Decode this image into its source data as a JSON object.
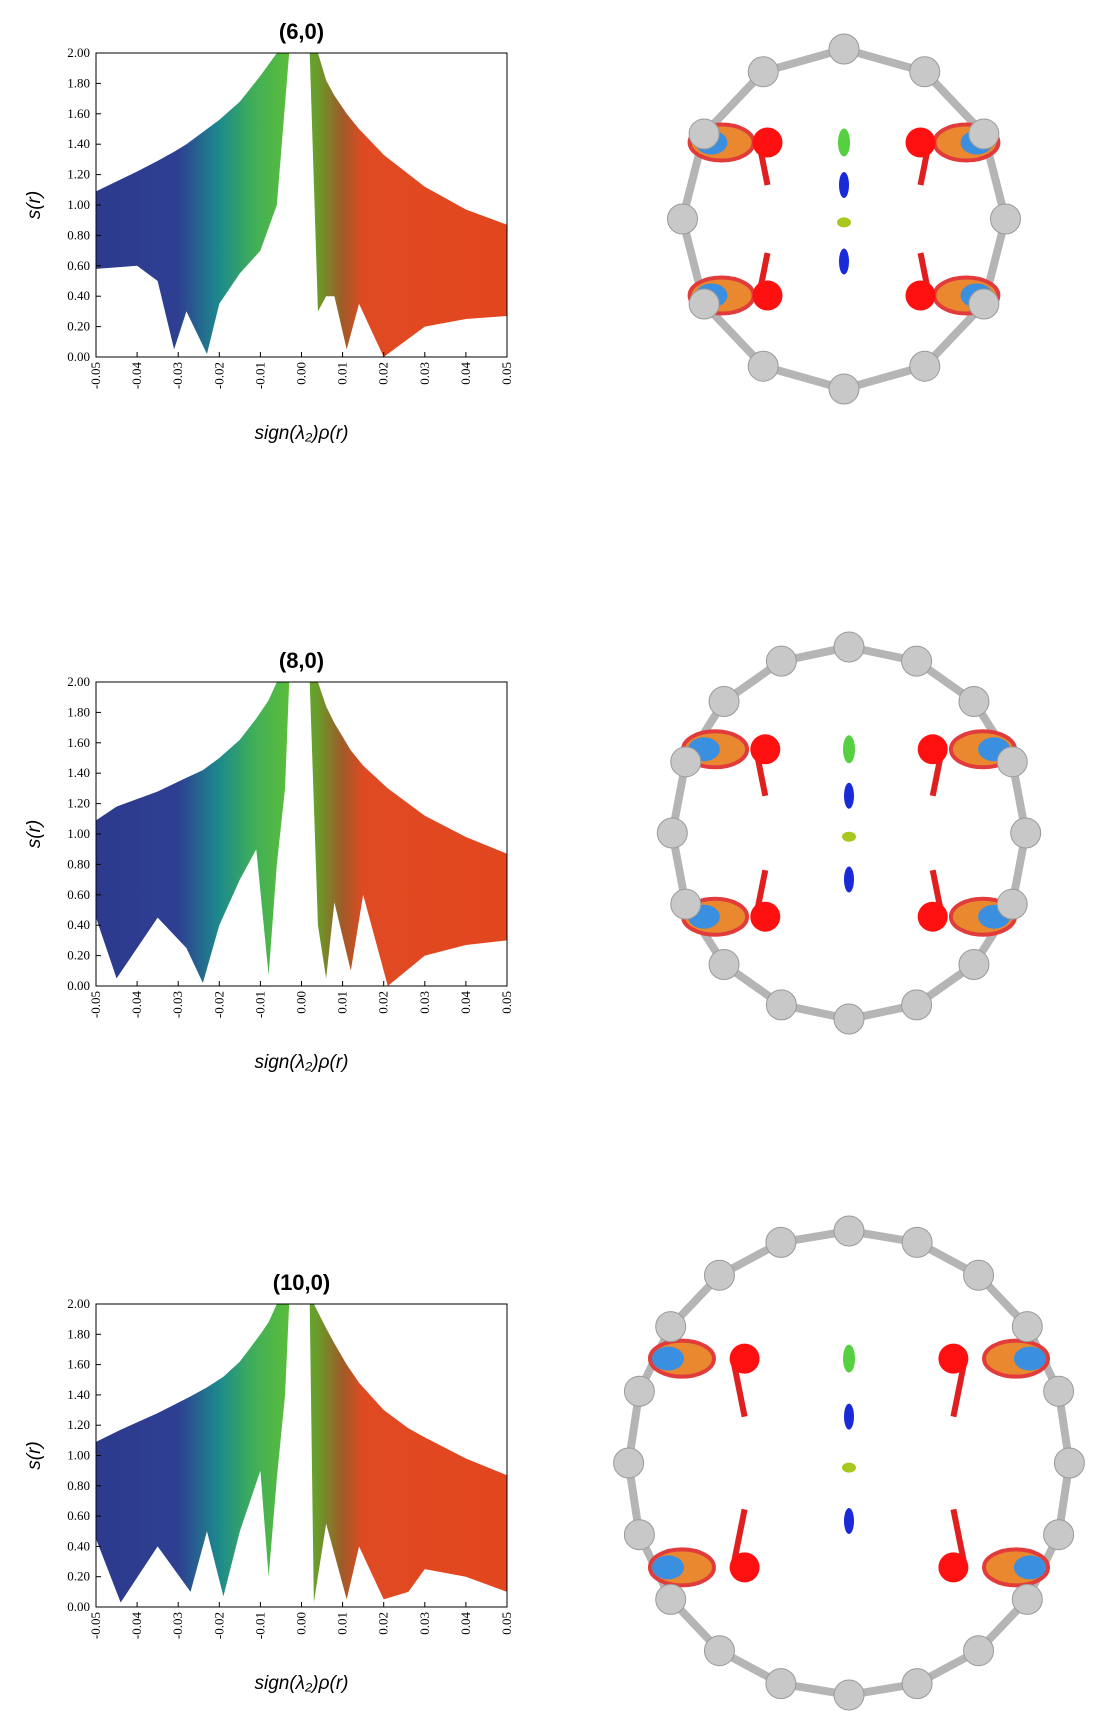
{
  "chart_data": [
    {
      "type": "range_area",
      "title": "(6,0)",
      "x_label": "sign(λ₂)ρ(r)",
      "y_label": "s(r)",
      "x": [
        -0.05,
        -0.04,
        -0.035,
        -0.031,
        -0.028,
        -0.023,
        -0.02,
        -0.015,
        -0.01,
        -0.006,
        -0.003,
        0,
        0.002,
        0.004,
        0.006,
        0.008,
        0.011,
        0.014,
        0.02,
        0.03,
        0.04,
        0.05
      ],
      "high": [
        1.09,
        1.22,
        1.29,
        1.35,
        1.4,
        1.5,
        1.56,
        1.68,
        1.85,
        2.0,
        2.0,
        null,
        2.0,
        2.0,
        1.82,
        1.72,
        1.6,
        1.5,
        1.33,
        1.12,
        0.97,
        0.87
      ],
      "low": [
        0.58,
        0.6,
        0.5,
        0.05,
        0.3,
        0.02,
        0.35,
        0.55,
        0.7,
        1.0,
        2.0,
        null,
        2.0,
        0.3,
        0.4,
        0.4,
        0.05,
        0.35,
        0.0,
        0.2,
        0.25,
        0.27
      ],
      "xlim": [
        -0.05,
        0.05
      ],
      "ylim": [
        0,
        2
      ],
      "xticks": [
        -0.05,
        -0.04,
        -0.03,
        -0.02,
        -0.01,
        {
          "value": 0,
          "label": "0.00"
        },
        0.01,
        0.02,
        0.03,
        0.04,
        0.05
      ],
      "yticks": [
        {
          "value": 0,
          "label": "0.00"
        },
        {
          "value": 0.2,
          "label": "0.20"
        },
        {
          "value": 0.4,
          "label": "0.40"
        },
        {
          "value": 0.6,
          "label": "0.60"
        },
        {
          "value": 0.8,
          "label": "0.80"
        },
        {
          "value": 1,
          "label": "1.00"
        },
        {
          "value": 1.2,
          "label": "1.20"
        },
        {
          "value": 1.4,
          "label": "1.40"
        },
        {
          "value": 1.6,
          "label": "1.60"
        },
        {
          "value": 1.8,
          "label": "1.80"
        },
        {
          "value": 2,
          "label": "2.00"
        }
      ]
    },
    {
      "type": "range_area",
      "title": "(8,0)",
      "x_label": "sign(λ₂)ρ(r)",
      "y_label": "s(r)",
      "x": [
        -0.05,
        -0.045,
        -0.035,
        -0.028,
        -0.024,
        -0.02,
        -0.015,
        -0.011,
        -0.008,
        -0.006,
        -0.004,
        -0.003,
        0,
        0.002,
        0.004,
        0.006,
        0.008,
        0.012,
        0.015,
        0.021,
        0.03,
        0.04,
        0.05
      ],
      "high": [
        1.09,
        1.18,
        1.28,
        1.37,
        1.42,
        1.5,
        1.62,
        1.76,
        1.88,
        2.0,
        2.0,
        2.0,
        null,
        2.0,
        2.0,
        1.84,
        1.73,
        1.55,
        1.45,
        1.3,
        1.12,
        0.98,
        0.87
      ],
      "low": [
        0.45,
        0.05,
        0.45,
        0.25,
        0.02,
        0.4,
        0.7,
        0.9,
        0.07,
        0.8,
        1.3,
        2.0,
        null,
        2.0,
        0.4,
        0.05,
        0.55,
        0.1,
        0.6,
        0.0,
        0.2,
        0.27,
        0.3
      ],
      "xlim": [
        -0.05,
        0.05
      ],
      "ylim": [
        0,
        2
      ],
      "xticks": [
        -0.05,
        -0.04,
        -0.03,
        -0.02,
        -0.01,
        {
          "value": 0,
          "label": "0.00"
        },
        0.01,
        0.02,
        0.03,
        0.04,
        0.05
      ],
      "yticks": [
        {
          "value": 0,
          "label": "0.00"
        },
        {
          "value": 0.2,
          "label": "0.20"
        },
        {
          "value": 0.4,
          "label": "0.40"
        },
        {
          "value": 0.6,
          "label": "0.60"
        },
        {
          "value": 0.8,
          "label": "0.80"
        },
        {
          "value": 1,
          "label": "1.00"
        },
        {
          "value": 1.2,
          "label": "1.20"
        },
        {
          "value": 1.4,
          "label": "1.40"
        },
        {
          "value": 1.6,
          "label": "1.60"
        },
        {
          "value": 1.8,
          "label": "1.80"
        },
        {
          "value": 2,
          "label": "2.00"
        }
      ]
    },
    {
      "type": "range_area",
      "title": "(10,0)",
      "x_label": "sign(λ₂)ρ(r)",
      "y_label": "s(r)",
      "x": [
        -0.05,
        -0.044,
        -0.035,
        -0.027,
        -0.023,
        -0.019,
        -0.015,
        -0.01,
        -0.008,
        -0.006,
        -0.004,
        -0.003,
        0,
        0.002,
        0.003,
        0.006,
        0.008,
        0.011,
        0.014,
        0.02,
        0.026,
        0.03,
        0.04,
        0.05
      ],
      "high": [
        1.09,
        1.17,
        1.28,
        1.39,
        1.45,
        1.52,
        1.62,
        1.8,
        1.88,
        2.0,
        2.0,
        2.0,
        null,
        2.0,
        2.0,
        1.84,
        1.74,
        1.6,
        1.48,
        1.3,
        1.18,
        1.12,
        0.98,
        0.87
      ],
      "low": [
        0.45,
        0.03,
        0.4,
        0.1,
        0.5,
        0.07,
        0.5,
        0.9,
        0.2,
        0.85,
        1.4,
        2.0,
        null,
        2.0,
        0.03,
        0.55,
        0.35,
        0.05,
        0.4,
        0.05,
        0.1,
        0.25,
        0.2,
        0.1
      ],
      "xlim": [
        -0.05,
        0.05
      ],
      "ylim": [
        0,
        2
      ],
      "xticks": [
        -0.05,
        -0.04,
        -0.03,
        -0.02,
        -0.01,
        {
          "value": 0,
          "label": "0.00"
        },
        0.01,
        0.02,
        0.03,
        0.04,
        0.05
      ],
      "yticks": [
        {
          "value": 0,
          "label": "0.00"
        },
        {
          "value": 0.2,
          "label": "0.20"
        },
        {
          "value": 0.4,
          "label": "0.40"
        },
        {
          "value": 0.6,
          "label": "0.60"
        },
        {
          "value": 0.8,
          "label": "0.80"
        },
        {
          "value": 1,
          "label": "1.00"
        },
        {
          "value": 1.2,
          "label": "1.20"
        },
        {
          "value": 1.4,
          "label": "1.40"
        },
        {
          "value": 1.6,
          "label": "1.60"
        },
        {
          "value": 1.8,
          "label": "1.80"
        },
        {
          "value": 2,
          "label": "2.00"
        }
      ]
    }
  ]
}
